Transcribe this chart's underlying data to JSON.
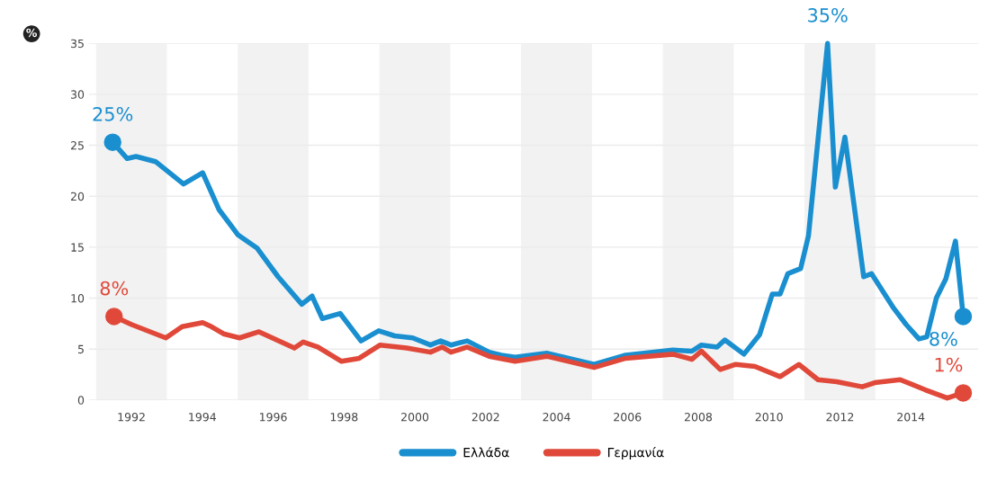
{
  "chart_data": {
    "type": "line",
    "ylabel": "%",
    "xlim": [
      1990.8,
      2015.9
    ],
    "ylim": [
      0,
      35
    ],
    "xticks": [
      1992,
      1994,
      1996,
      1998,
      2000,
      2002,
      2004,
      2006,
      2008,
      2010,
      2012,
      2014
    ],
    "yticks": [
      0,
      5,
      10,
      15,
      20,
      25,
      30,
      35
    ],
    "grid": "y",
    "legend": "bottom",
    "line_style": "solid",
    "bands": [
      {
        "axis": "x",
        "from": 1991,
        "to": 1993,
        "color": "#f2f2f2"
      },
      {
        "axis": "x",
        "from": 1995,
        "to": 1997,
        "color": "#f2f2f2"
      },
      {
        "axis": "x",
        "from": 1999,
        "to": 2001,
        "color": "#f2f2f2"
      },
      {
        "axis": "x",
        "from": 2003,
        "to": 2005,
        "color": "#f2f2f2"
      },
      {
        "axis": "x",
        "from": 2007,
        "to": 2009,
        "color": "#f2f2f2"
      },
      {
        "axis": "x",
        "from": 2011,
        "to": 2013,
        "color": "#f2f2f2"
      }
    ],
    "series": [
      {
        "name": "Ελλάδα",
        "color": "#1a8fd0",
        "x": [
          1991.47,
          1991.88,
          1992.13,
          1992.68,
          1993.47,
          1994.01,
          1994.47,
          1995.01,
          1995.55,
          1996.14,
          1996.81,
          1997.1,
          1997.39,
          1997.89,
          1998.48,
          1998.98,
          1999.43,
          1999.94,
          2000.44,
          2000.73,
          2001.02,
          2001.48,
          2002.1,
          2002.44,
          2002.83,
          2003.72,
          2005.06,
          2005.95,
          2007.28,
          2007.82,
          2008.09,
          2008.53,
          2008.75,
          2009.29,
          2009.73,
          2010.09,
          2010.31,
          2010.53,
          2010.89,
          2011.11,
          2011.65,
          2011.87,
          2012.14,
          2012.67,
          2012.89,
          2013.52,
          2013.87,
          2014.23,
          2014.45,
          2014.72,
          2014.99,
          2015.26,
          2015.48
        ],
        "values": [
          25.3,
          23.7,
          23.9,
          23.4,
          21.2,
          22.3,
          18.7,
          16.2,
          14.9,
          12.1,
          9.4,
          10.2,
          8.0,
          8.5,
          5.8,
          6.8,
          6.3,
          6.1,
          5.4,
          5.8,
          5.4,
          5.8,
          4.7,
          4.4,
          4.2,
          4.6,
          3.5,
          4.4,
          4.9,
          4.8,
          5.4,
          5.2,
          5.9,
          4.5,
          6.4,
          10.4,
          10.4,
          12.4,
          12.9,
          16.1,
          35,
          20.9,
          25.8,
          12.1,
          12.4,
          9.0,
          7.4,
          6.0,
          6.2,
          10.0,
          11.9,
          15.6,
          8.2
        ]
      },
      {
        "name": "Γερμανία",
        "color": "#e0493a",
        "x": [
          1991.51,
          1992.01,
          1992.97,
          1993.43,
          1994.01,
          1994.26,
          1994.6,
          1995.05,
          1995.6,
          1996.6,
          1996.85,
          1997.26,
          1997.93,
          1998.43,
          1999.02,
          1999.77,
          2000.44,
          2000.77,
          2001.02,
          2001.48,
          2002.1,
          2002.83,
          2003.72,
          2005.06,
          2005.95,
          2007.28,
          2007.82,
          2008.09,
          2008.62,
          2009.06,
          2009.6,
          2010.31,
          2010.84,
          2011.38,
          2011.91,
          2012.63,
          2012.98,
          2013.7,
          2014.41,
          2015.03,
          2015.48
        ],
        "values": [
          8.2,
          7.4,
          6.1,
          7.2,
          7.6,
          7.2,
          6.5,
          6.1,
          6.7,
          5.1,
          5.7,
          5.2,
          3.8,
          4.1,
          5.4,
          5.1,
          4.7,
          5.2,
          4.7,
          5.2,
          4.3,
          3.8,
          4.3,
          3.2,
          4.1,
          4.5,
          4.0,
          4.8,
          3.0,
          3.5,
          3.3,
          2.3,
          3.5,
          2.0,
          1.8,
          1.3,
          1.7,
          2.0,
          1.0,
          0.2,
          0.7
        ]
      }
    ],
    "annotations": [
      {
        "text": "25%",
        "x": 1991.47,
        "y": 25.3
      },
      {
        "text": "8%",
        "x": 1991.51,
        "y": 8.2
      },
      {
        "text": "35%",
        "x": 2011.65,
        "y": 35
      },
      {
        "text": "8%",
        "x": 2015.48,
        "y": 8.2
      },
      {
        "text": "1%",
        "x": 2015.48,
        "y": 0.7
      }
    ]
  }
}
